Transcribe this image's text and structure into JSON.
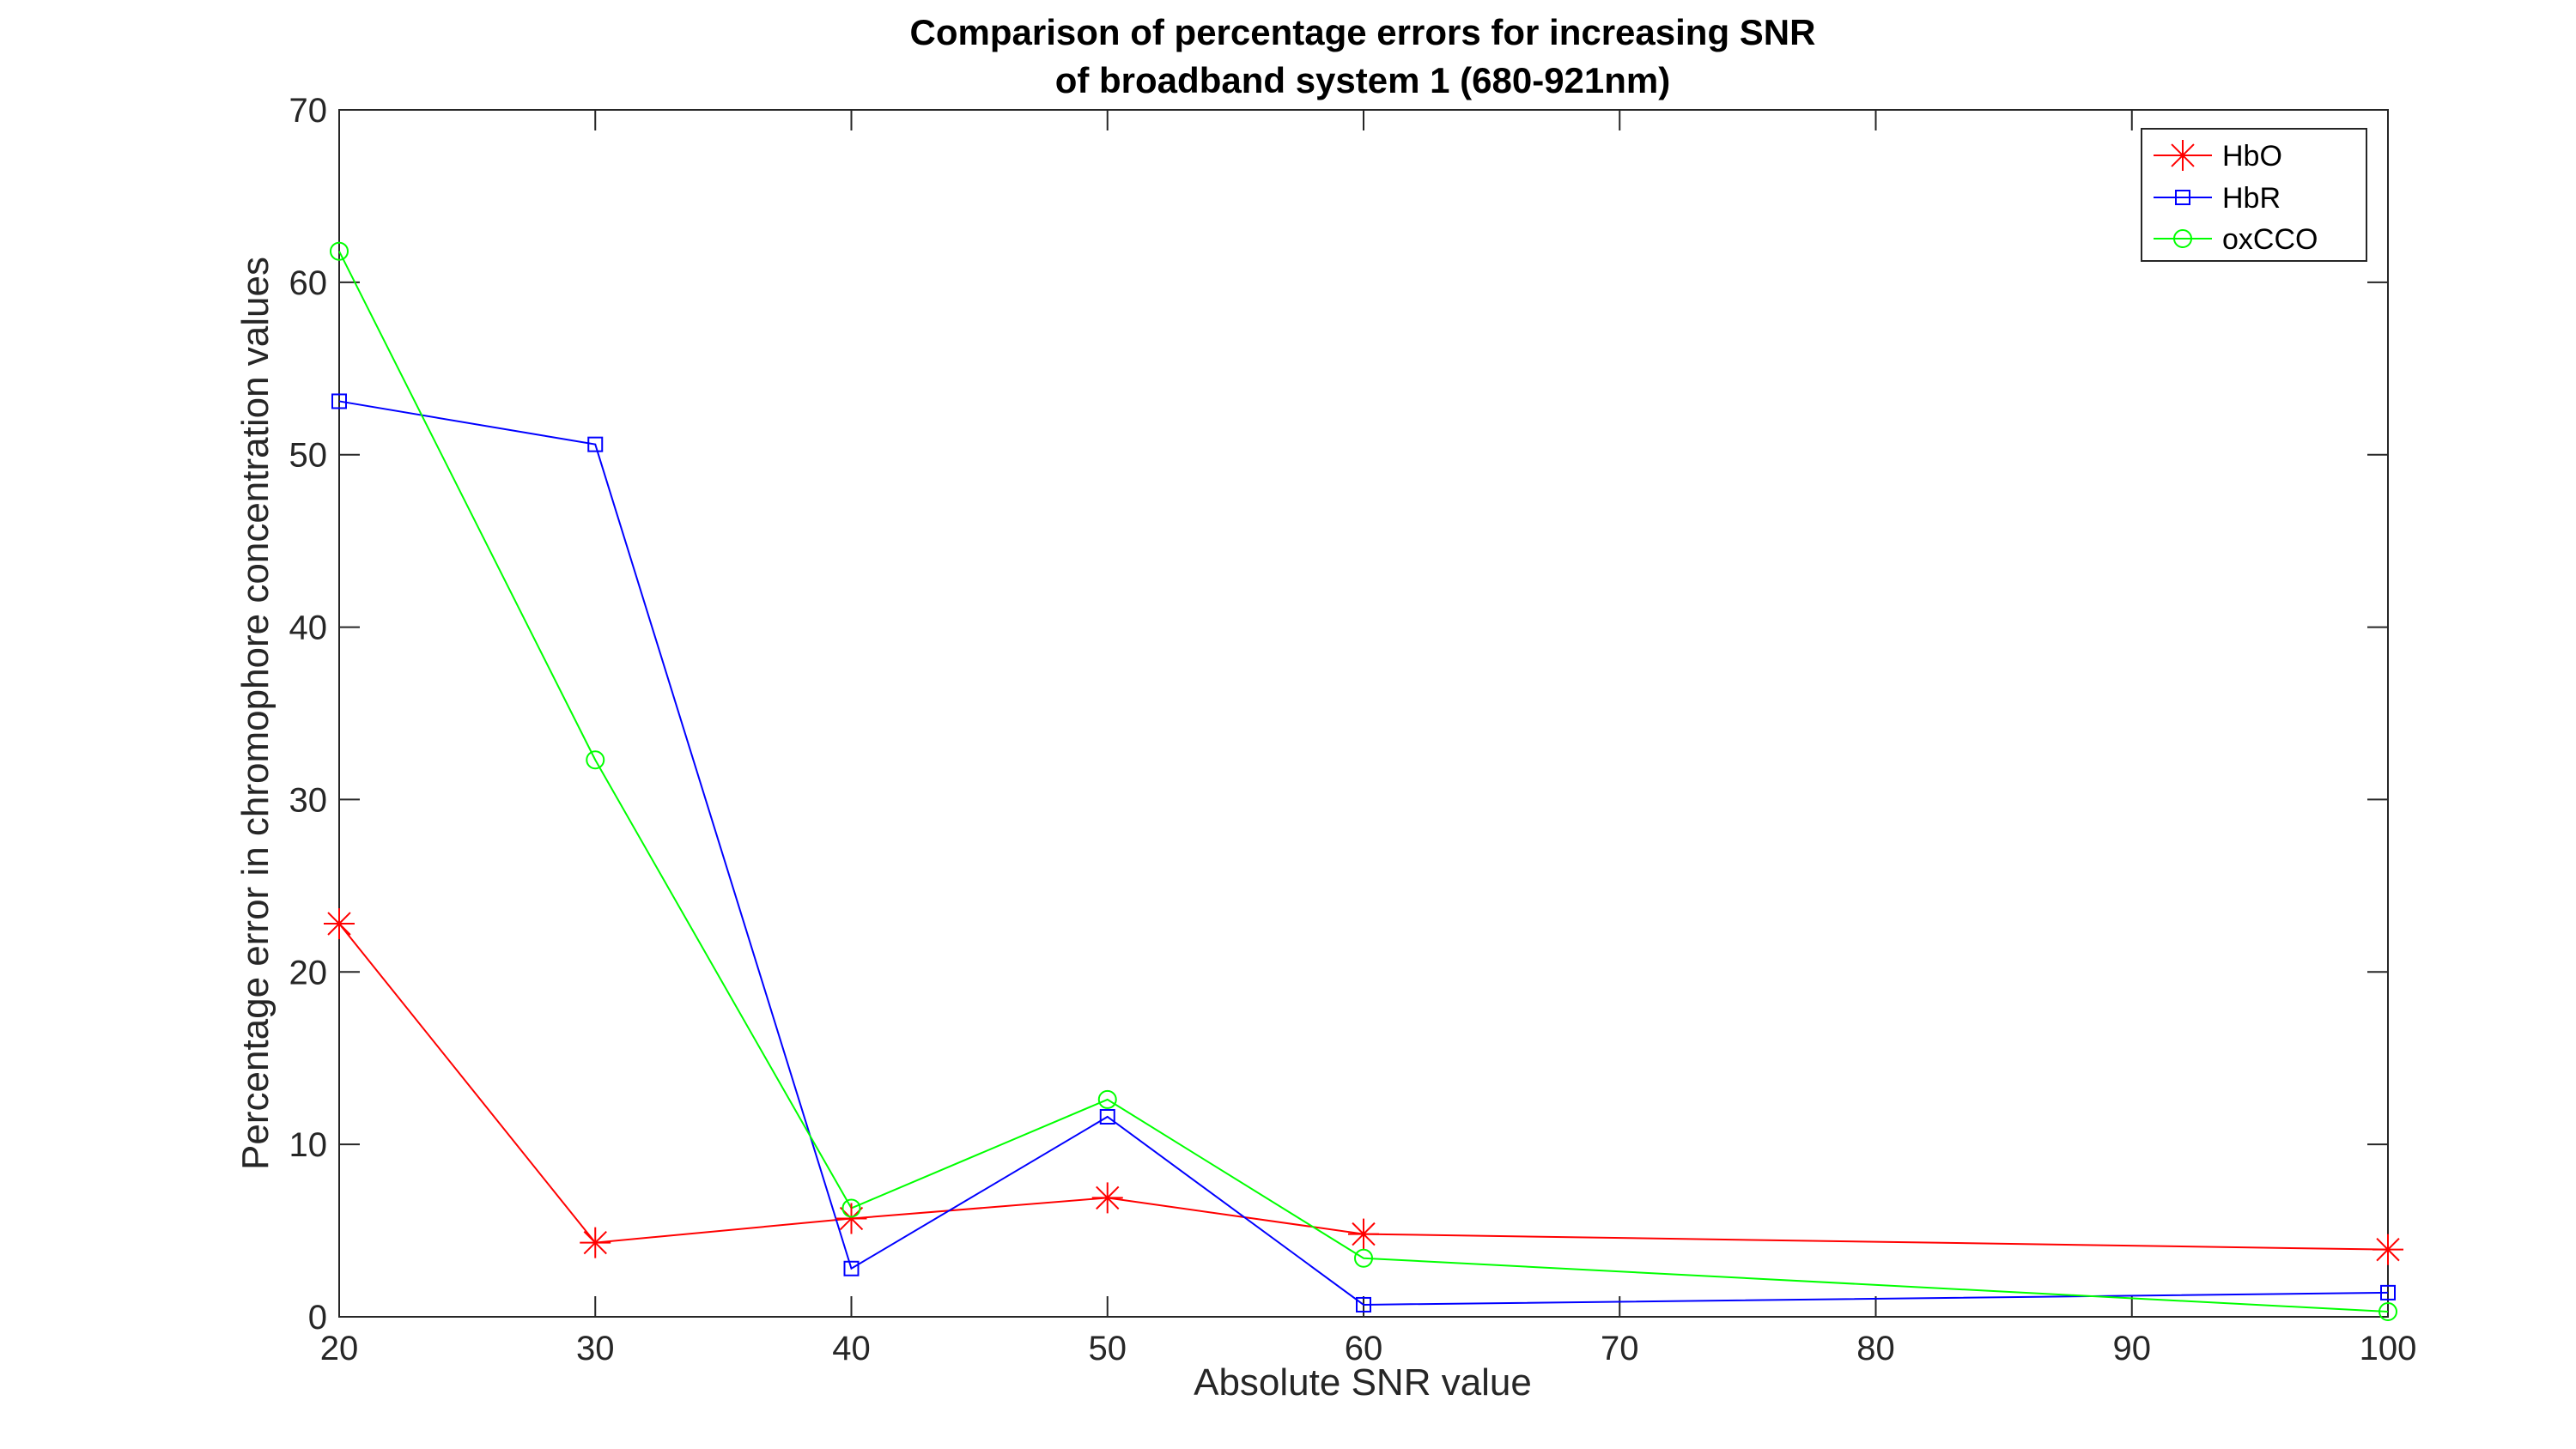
{
  "chart_data": {
    "type": "line",
    "title_line1": "Comparison of percentage errors for increasing SNR",
    "title_line2": "of broadband system 1 (680-921nm)",
    "xlabel": "Absolute SNR value",
    "ylabel": "Percentage error in chromophore concentration values",
    "xlim": [
      20,
      100
    ],
    "ylim": [
      0,
      70
    ],
    "xticks": [
      20,
      30,
      40,
      50,
      60,
      70,
      80,
      90,
      100
    ],
    "yticks": [
      0,
      10,
      20,
      30,
      40,
      50,
      60,
      70
    ],
    "x": [
      20,
      30,
      40,
      50,
      60,
      100
    ],
    "grid": false,
    "legend_position": "top-right",
    "series": [
      {
        "name": "HbO",
        "color": "#ff0000",
        "marker": "asterisk",
        "values": [
          22.8,
          4.3,
          5.7,
          6.9,
          4.8,
          3.9
        ]
      },
      {
        "name": "HbR",
        "color": "#0000ff",
        "marker": "square",
        "values": [
          53.1,
          50.6,
          2.8,
          11.6,
          0.7,
          1.4
        ]
      },
      {
        "name": "oxCCO",
        "color": "#00ff00",
        "marker": "circle",
        "values": [
          61.8,
          32.3,
          6.3,
          12.6,
          3.4,
          0.3
        ]
      }
    ]
  }
}
